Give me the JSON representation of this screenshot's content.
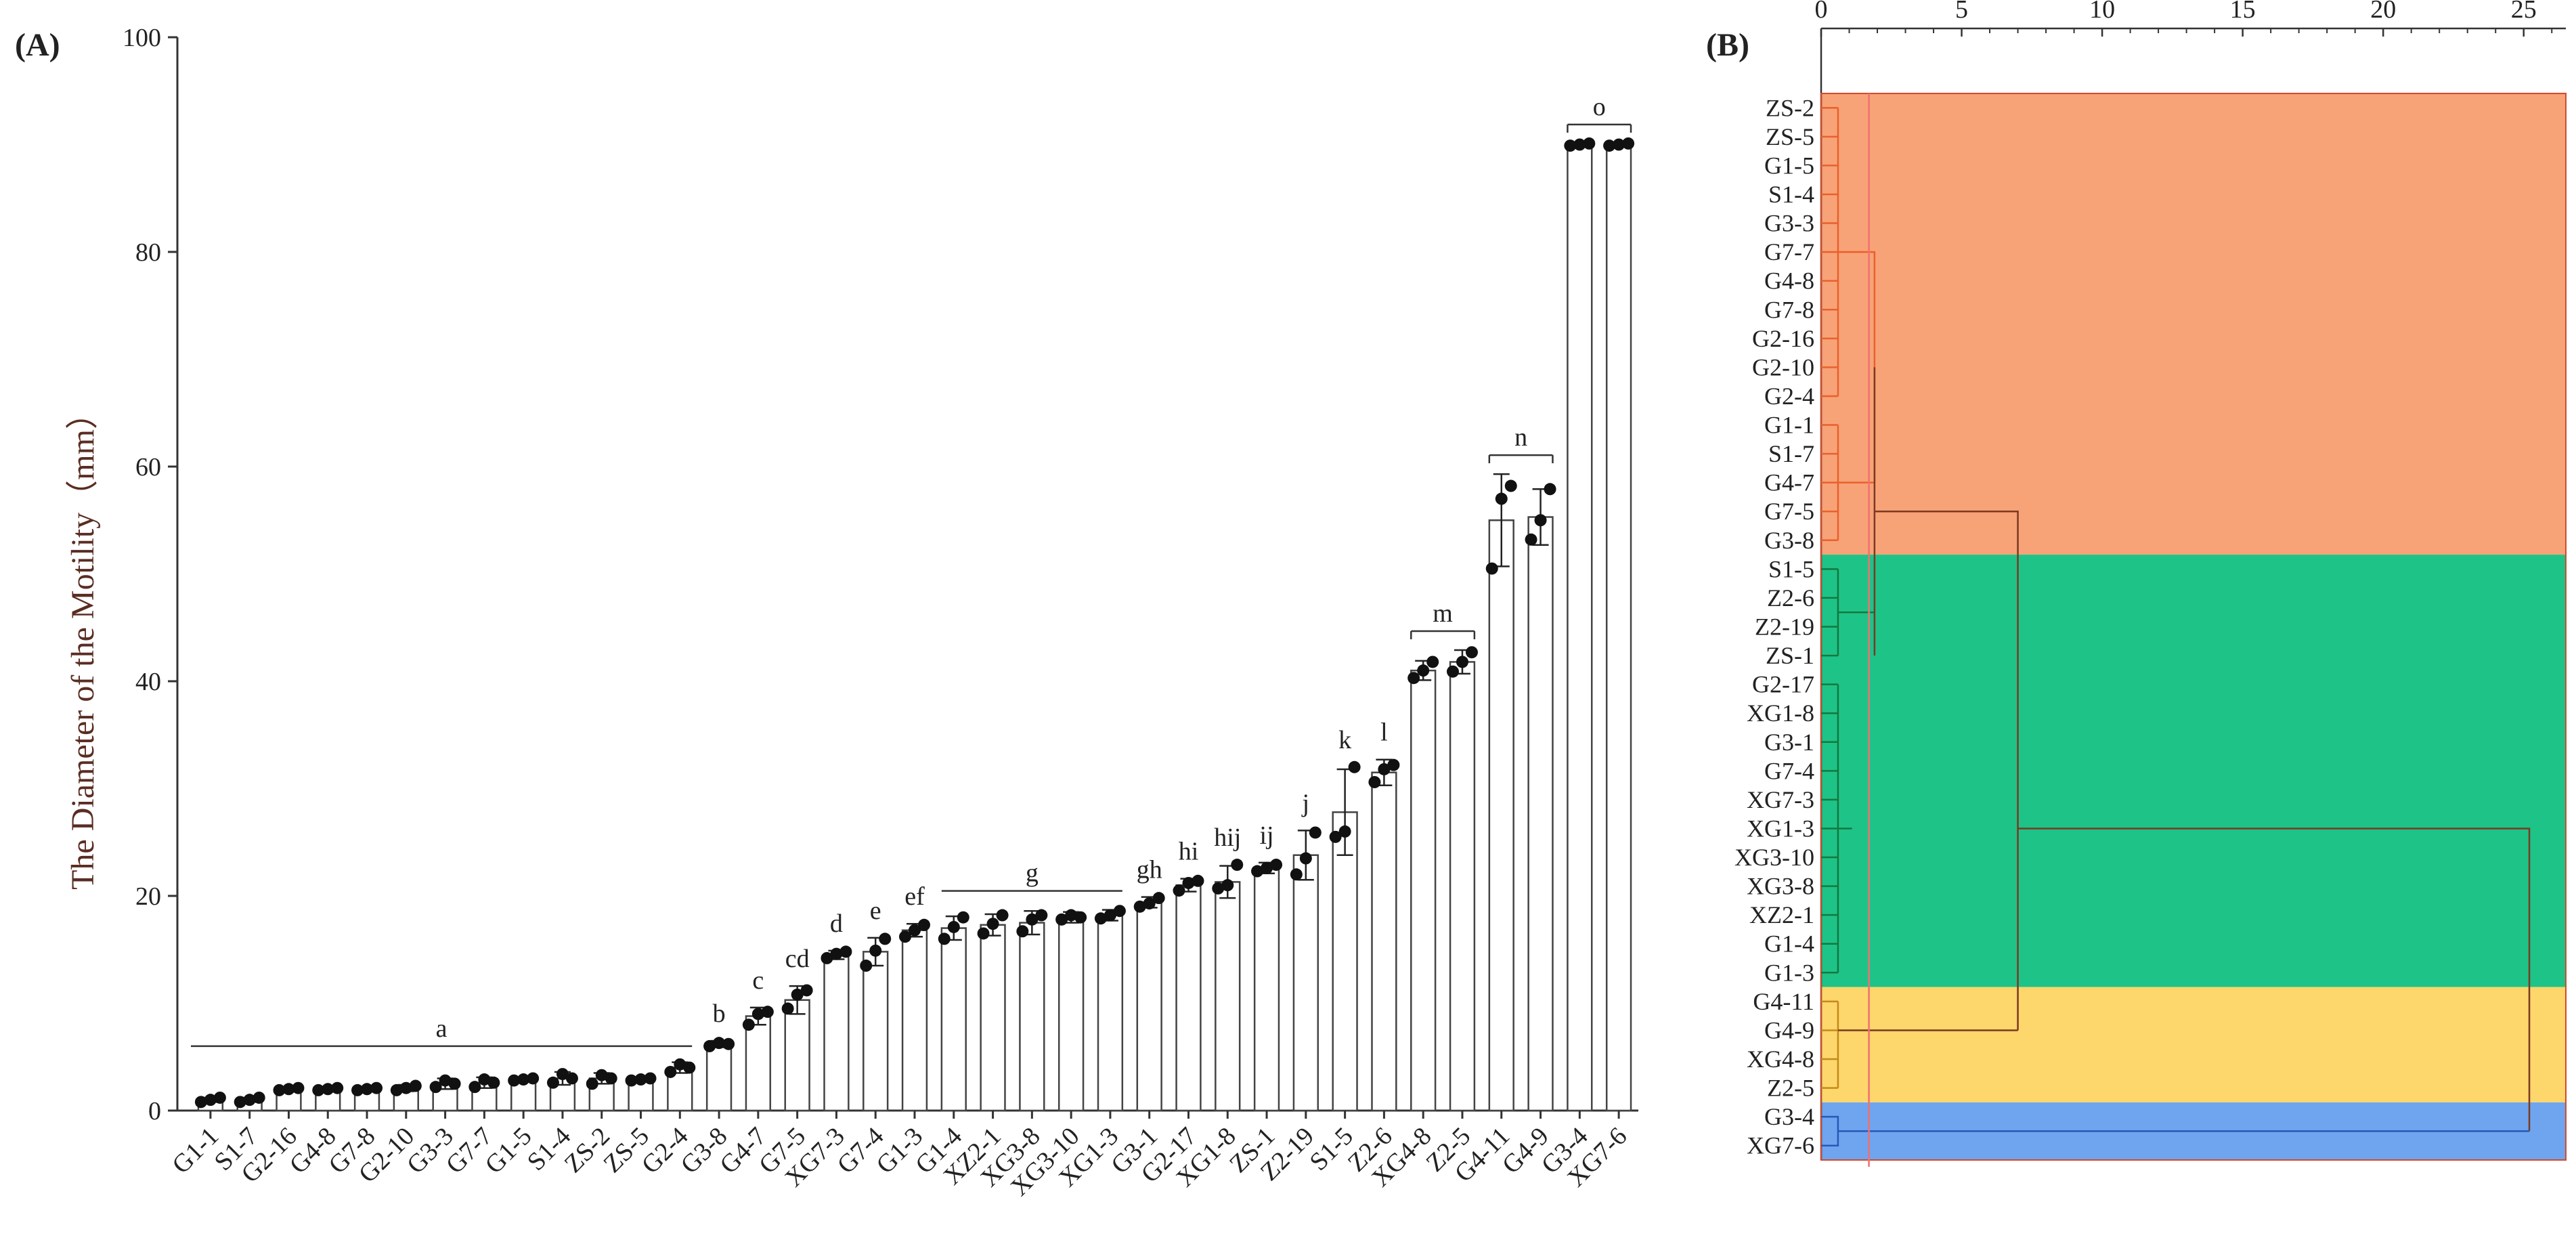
{
  "panel_a": {
    "label": "(A)"
  },
  "panel_b": {
    "label": "(B)"
  },
  "colors": {
    "orange": "#f8a277",
    "green": "#1ec388",
    "yellow": "#fdd66c",
    "blue": "#6ea5ee",
    "lineOrange": "#e8612c",
    "lineGreen": "#16783d",
    "lineYellow": "#c48a1a",
    "lineBlue": "#2a57b8",
    "lineDark": "#7a3a22",
    "cutLine": "#f07070"
  },
  "chart_data": [
    {
      "type": "bar",
      "title": "",
      "xlabel": "",
      "ylabel": "The Diameter of the Motility（mm）",
      "ylim": [
        0,
        100
      ],
      "yticks": [
        0,
        20,
        40,
        60,
        80,
        100
      ],
      "grid": false,
      "categories": [
        "G1-1",
        "S1-7",
        "G2-16",
        "G4-8",
        "G7-8",
        "G2-10",
        "G3-3",
        "G7-7",
        "G1-5",
        "S1-4",
        "ZS-2",
        "ZS-5",
        "G2-4",
        "G3-8",
        "G4-7",
        "G7-5",
        "XG7-3",
        "G7-4",
        "G1-3",
        "G1-4",
        "XZ2-1",
        "XG3-8",
        "XG3-10",
        "XG1-3",
        "G3-1",
        "G2-17",
        "XG1-8",
        "ZS-1",
        "Z2-19",
        "S1-5",
        "Z2-6",
        "XG4-8",
        "Z2-5",
        "G4-11",
        "G4-9",
        "G3-4",
        "XG7-6"
      ],
      "values": [
        1.0,
        1.0,
        2.0,
        2.0,
        2.0,
        2.1,
        2.5,
        2.6,
        2.9,
        3.0,
        3.0,
        2.9,
        4.0,
        6.2,
        8.8,
        10.3,
        14.5,
        14.8,
        16.8,
        17.0,
        17.3,
        17.5,
        18.0,
        18.2,
        19.4,
        21.0,
        21.3,
        22.6,
        23.8,
        27.8,
        31.5,
        41.0,
        41.8,
        55.0,
        55.3,
        90.0,
        90.0
      ],
      "errors": [
        0.2,
        0.2,
        0.2,
        0.2,
        0.2,
        0.3,
        0.5,
        0.5,
        0.2,
        0.6,
        0.5,
        0.2,
        0.5,
        0.3,
        0.8,
        1.3,
        0.4,
        1.3,
        0.6,
        1.1,
        1.0,
        1.1,
        0.5,
        0.5,
        0.5,
        0.6,
        1.5,
        0.5,
        2.3,
        4.0,
        1.2,
        0.9,
        1.1,
        4.3,
        2.6,
        0.1,
        0.1
      ],
      "points": [
        [
          0.8,
          1.0,
          1.2
        ],
        [
          0.8,
          1.0,
          1.2
        ],
        [
          1.9,
          2.0,
          2.1
        ],
        [
          1.9,
          2.0,
          2.1
        ],
        [
          1.9,
          2.0,
          2.1
        ],
        [
          1.9,
          2.1,
          2.3
        ],
        [
          2.2,
          2.8,
          2.5
        ],
        [
          2.2,
          2.9,
          2.6
        ],
        [
          2.8,
          2.9,
          3.0
        ],
        [
          2.6,
          3.4,
          3.0
        ],
        [
          2.5,
          3.3,
          3.0
        ],
        [
          2.8,
          2.9,
          3.0
        ],
        [
          3.6,
          4.3,
          4.0
        ],
        [
          6.0,
          6.3,
          6.2
        ],
        [
          8.0,
          9.0,
          9.2
        ],
        [
          9.5,
          10.8,
          11.2
        ],
        [
          14.2,
          14.6,
          14.8
        ],
        [
          13.5,
          14.9,
          16.0
        ],
        [
          16.2,
          16.8,
          17.3
        ],
        [
          16.0,
          17.1,
          18.0
        ],
        [
          16.5,
          17.4,
          18.2
        ],
        [
          16.7,
          17.8,
          18.2
        ],
        [
          17.8,
          18.2,
          18.0
        ],
        [
          17.9,
          18.2,
          18.6
        ],
        [
          19.0,
          19.3,
          19.8
        ],
        [
          20.5,
          21.2,
          21.4
        ],
        [
          20.7,
          21.0,
          22.9
        ],
        [
          22.3,
          22.6,
          22.9
        ],
        [
          22.0,
          23.5,
          25.9
        ],
        [
          25.5,
          26.0,
          32.0
        ],
        [
          30.6,
          31.8,
          32.2
        ],
        [
          40.3,
          41.0,
          41.8
        ],
        [
          40.9,
          41.8,
          42.7
        ],
        [
          50.5,
          57.0,
          58.2
        ],
        [
          53.2,
          55.0,
          57.9
        ],
        [
          89.9,
          90.0,
          90.1
        ],
        [
          89.9,
          90.0,
          90.1
        ]
      ],
      "significance": [
        {
          "label": "a",
          "from": 0,
          "to": 12
        },
        {
          "label": "b",
          "from": 13,
          "to": 13
        },
        {
          "label": "c",
          "from": 14,
          "to": 14
        },
        {
          "label": "cd",
          "from": 15,
          "to": 15
        },
        {
          "label": "d",
          "from": 16,
          "to": 16
        },
        {
          "label": "e",
          "from": 17,
          "to": 17
        },
        {
          "label": "ef",
          "from": 18,
          "to": 18
        },
        {
          "label": "g",
          "from": 19,
          "to": 23
        },
        {
          "label": "gh",
          "from": 24,
          "to": 24
        },
        {
          "label": "hi",
          "from": 25,
          "to": 25
        },
        {
          "label": "hij",
          "from": 26,
          "to": 26
        },
        {
          "label": "ij",
          "from": 27,
          "to": 27
        },
        {
          "label": "j",
          "from": 28,
          "to": 28
        },
        {
          "label": "k",
          "from": 29,
          "to": 29
        },
        {
          "label": "l",
          "from": 30,
          "to": 30
        },
        {
          "label": "m",
          "from": 31,
          "to": 32
        },
        {
          "label": "n",
          "from": 33,
          "to": 34
        },
        {
          "label": "o",
          "from": 35,
          "to": 36
        }
      ]
    },
    {
      "type": "dendrogram",
      "title": "",
      "xlim": [
        0,
        26.5
      ],
      "xticks": [
        0,
        5,
        10,
        15,
        20,
        25
      ],
      "leaves": [
        "ZS-2",
        "ZS-5",
        "G1-5",
        "S1-4",
        "G3-3",
        "G7-7",
        "G4-8",
        "G7-8",
        "G2-16",
        "G2-10",
        "G2-4",
        "G1-1",
        "S1-7",
        "G4-7",
        "G7-5",
        "G3-8",
        "S1-5",
        "Z2-6",
        "Z2-19",
        "ZS-1",
        "G2-17",
        "XG1-8",
        "G3-1",
        "G7-4",
        "XG7-3",
        "XG1-3",
        "XG3-10",
        "XG3-8",
        "XZ2-1",
        "G1-4",
        "G1-3",
        "G4-11",
        "G4-9",
        "XG4-8",
        "Z2-5",
        "G3-4",
        "XG7-6"
      ],
      "clusters": [
        {
          "name": "cluster-1",
          "from": 0,
          "to": 15,
          "color": "orange"
        },
        {
          "name": "cluster-2",
          "from": 16,
          "to": 30,
          "color": "green"
        },
        {
          "name": "cluster-3",
          "from": 31,
          "to": 34,
          "color": "yellow"
        },
        {
          "name": "cluster-4",
          "from": 35,
          "to": 36,
          "color": "blue"
        }
      ],
      "cut_height": 1.7
    }
  ]
}
